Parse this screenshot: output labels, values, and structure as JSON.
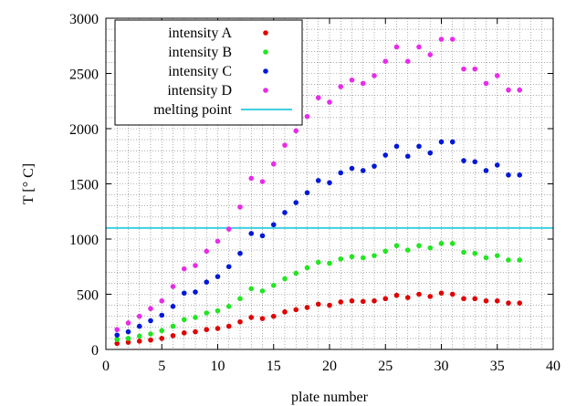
{
  "chart_data": {
    "type": "scatter",
    "xlabel": "plate number",
    "ylabel": "T [° C]",
    "xlim": [
      0,
      40
    ],
    "ylim": [
      0,
      3000
    ],
    "xticks": [
      0,
      5,
      10,
      15,
      20,
      25,
      30,
      35,
      40
    ],
    "yticks": [
      0,
      500,
      1000,
      1500,
      2000,
      2500,
      3000
    ],
    "grid": true,
    "legend_placement": "top-left",
    "x": [
      1,
      2,
      3,
      4,
      5,
      6,
      7,
      8,
      9,
      10,
      11,
      12,
      13,
      14,
      15,
      16,
      17,
      18,
      19,
      20,
      21,
      22,
      23,
      24,
      25,
      26,
      27,
      28,
      29,
      30,
      31,
      32,
      33,
      34,
      35,
      36,
      37
    ],
    "series": [
      {
        "name": "intensity A",
        "color": "#e00000",
        "values": [
          55,
          65,
          75,
          85,
          100,
          125,
          150,
          160,
          180,
          190,
          210,
          250,
          290,
          280,
          300,
          340,
          360,
          380,
          410,
          400,
          430,
          440,
          435,
          440,
          460,
          490,
          470,
          500,
          480,
          510,
          500,
          460,
          460,
          440,
          440,
          420,
          420
        ]
      },
      {
        "name": "intensity B",
        "color": "#22e622",
        "values": [
          90,
          100,
          120,
          140,
          170,
          210,
          270,
          290,
          330,
          350,
          390,
          460,
          550,
          530,
          580,
          640,
          690,
          740,
          790,
          780,
          820,
          840,
          830,
          850,
          890,
          940,
          900,
          940,
          920,
          960,
          960,
          880,
          870,
          830,
          850,
          810,
          810
        ]
      },
      {
        "name": "intensity C",
        "color": "#0018d8",
        "values": [
          130,
          160,
          210,
          260,
          310,
          390,
          510,
          520,
          610,
          660,
          750,
          870,
          1050,
          1030,
          1130,
          1240,
          1330,
          1420,
          1530,
          1510,
          1600,
          1640,
          1620,
          1660,
          1760,
          1840,
          1750,
          1840,
          1780,
          1880,
          1880,
          1710,
          1700,
          1620,
          1670,
          1580,
          1580
        ]
      },
      {
        "name": "intensity D",
        "color": "#e82ce8",
        "values": [
          180,
          240,
          300,
          370,
          440,
          570,
          730,
          760,
          890,
          980,
          1090,
          1290,
          1550,
          1520,
          1680,
          1850,
          1980,
          2110,
          2280,
          2240,
          2380,
          2440,
          2410,
          2480,
          2610,
          2740,
          2610,
          2740,
          2670,
          2810,
          2810,
          2540,
          2540,
          2410,
          2480,
          2350,
          2350
        ]
      }
    ],
    "reference_lines": [
      {
        "name": "melting point",
        "color": "#3ed0e0",
        "y": 1100
      }
    ]
  }
}
